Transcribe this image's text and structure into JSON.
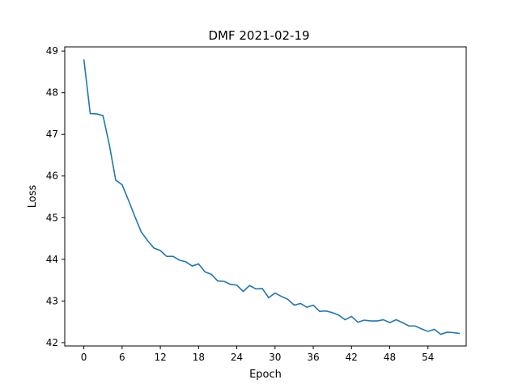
{
  "chart_data": {
    "type": "line",
    "title": "DMF 2021-02-19",
    "xlabel": "Epoch",
    "ylabel": "Loss",
    "xlim": [
      -3,
      60
    ],
    "ylim": [
      41.92,
      49.1
    ],
    "xticks": [
      0,
      6,
      12,
      18,
      24,
      30,
      36,
      42,
      48,
      54
    ],
    "yticks": [
      42,
      43,
      44,
      45,
      46,
      47,
      48,
      49
    ],
    "grid": false,
    "series_color": "#1f77b4",
    "series": [
      {
        "x": [
          0,
          1,
          2,
          3,
          4,
          5,
          6,
          7,
          8,
          9,
          10,
          11,
          12,
          13,
          14,
          15,
          16,
          17,
          18,
          19,
          20,
          21,
          22,
          23,
          24,
          25,
          26,
          27,
          28,
          29,
          30,
          31,
          32,
          33,
          34,
          35,
          36,
          37,
          38,
          39,
          40,
          41,
          42,
          43,
          44,
          45,
          46,
          47,
          48,
          49,
          50,
          51,
          52,
          53,
          54,
          55,
          56,
          57,
          58,
          59
        ],
        "values": [
          48.8,
          47.5,
          47.49,
          47.45,
          46.75,
          45.9,
          45.79,
          45.42,
          45.03,
          44.66,
          44.45,
          44.27,
          44.21,
          44.07,
          44.07,
          43.98,
          43.94,
          43.84,
          43.89,
          43.7,
          43.64,
          43.48,
          43.47,
          43.4,
          43.38,
          43.23,
          43.37,
          43.29,
          43.3,
          43.08,
          43.19,
          43.11,
          43.04,
          42.9,
          42.94,
          42.85,
          42.9,
          42.75,
          42.76,
          42.72,
          42.66,
          42.55,
          42.63,
          42.49,
          42.54,
          42.52,
          42.52,
          42.55,
          42.48,
          42.55,
          42.48,
          42.4,
          42.4,
          42.33,
          42.27,
          42.32,
          42.2,
          42.25,
          42.24,
          42.22
        ]
      }
    ]
  }
}
